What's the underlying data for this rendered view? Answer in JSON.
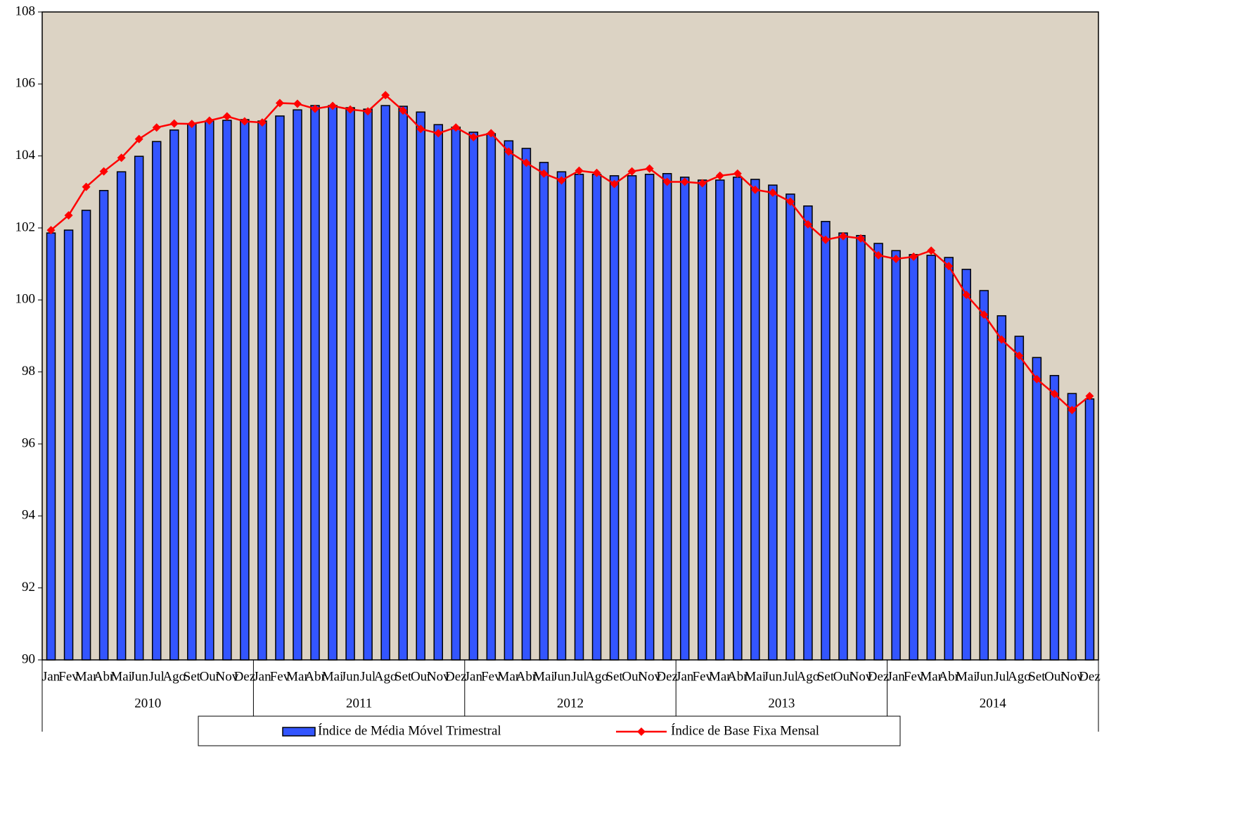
{
  "chart_data": {
    "type": "bar-line",
    "categories": [
      "Jan",
      "Fev",
      "Mar",
      "Abr",
      "Mai",
      "Jun",
      "Jul",
      "Ago",
      "Set",
      "Out",
      "Nov",
      "Dez",
      "Jan",
      "Fev",
      "Mar",
      "Abr",
      "Mai",
      "Jun",
      "Jul",
      "Ago",
      "Set",
      "Out",
      "Nov",
      "Dez",
      "Jan",
      "Fev",
      "Mar",
      "Abr",
      "Mai",
      "Jun",
      "Jul",
      "Ago",
      "Set",
      "Out",
      "Nov",
      "Dez",
      "Jan",
      "Fev",
      "Mar",
      "Abr",
      "Mai",
      "Jun",
      "Jul",
      "Ago",
      "Set",
      "Out",
      "Nov",
      "Dez",
      "Jan",
      "Fev",
      "Mar",
      "Abr",
      "Mai",
      "Jun",
      "Jul",
      "Ago",
      "Set",
      "Out",
      "Nov",
      "Dez"
    ],
    "years": [
      "2010",
      "2011",
      "2012",
      "2013",
      "2014"
    ],
    "series": [
      {
        "name": "Índice de Média Móvel Trimestral",
        "type": "bar",
        "color": "#3355ff",
        "values": [
          101.86,
          101.94,
          102.49,
          103.04,
          103.56,
          103.99,
          104.4,
          104.72,
          104.89,
          104.97,
          104.99,
          105.01,
          104.97,
          105.11,
          105.28,
          105.4,
          105.4,
          105.34,
          105.3,
          105.4,
          105.38,
          105.22,
          104.87,
          104.8,
          104.66,
          104.62,
          104.42,
          104.21,
          103.82,
          103.56,
          103.49,
          103.49,
          103.45,
          103.45,
          103.49,
          103.51,
          103.41,
          103.33,
          103.33,
          103.41,
          103.35,
          103.19,
          102.94,
          102.61,
          102.18,
          101.86,
          101.79,
          101.57,
          101.37,
          101.26,
          101.24,
          101.18,
          100.85,
          100.26,
          99.56,
          98.99,
          98.4,
          97.9,
          97.4,
          97.25
        ]
      },
      {
        "name": "Índice de Base Fixa Mensal",
        "type": "line",
        "color": "#ff0000",
        "values": [
          101.94,
          102.35,
          103.14,
          103.57,
          103.95,
          104.47,
          104.79,
          104.9,
          104.89,
          104.98,
          105.1,
          104.96,
          104.93,
          105.47,
          105.45,
          105.31,
          105.39,
          105.29,
          105.24,
          105.69,
          105.26,
          104.75,
          104.63,
          104.79,
          104.52,
          104.63,
          104.12,
          103.81,
          103.51,
          103.32,
          103.59,
          103.53,
          103.22,
          103.57,
          103.65,
          103.28,
          103.28,
          103.24,
          103.45,
          103.51,
          103.06,
          102.98,
          102.73,
          102.1,
          101.67,
          101.77,
          101.71,
          101.24,
          101.14,
          101.2,
          101.37,
          100.94,
          100.14,
          99.59,
          98.9,
          98.45,
          97.8,
          97.39,
          96.94,
          97.33
        ]
      }
    ],
    "ylim": [
      90,
      108
    ],
    "yticks": [
      90,
      92,
      94,
      96,
      98,
      100,
      102,
      104,
      106,
      108
    ],
    "legend": "bottom",
    "background": "#dcd3c4"
  }
}
